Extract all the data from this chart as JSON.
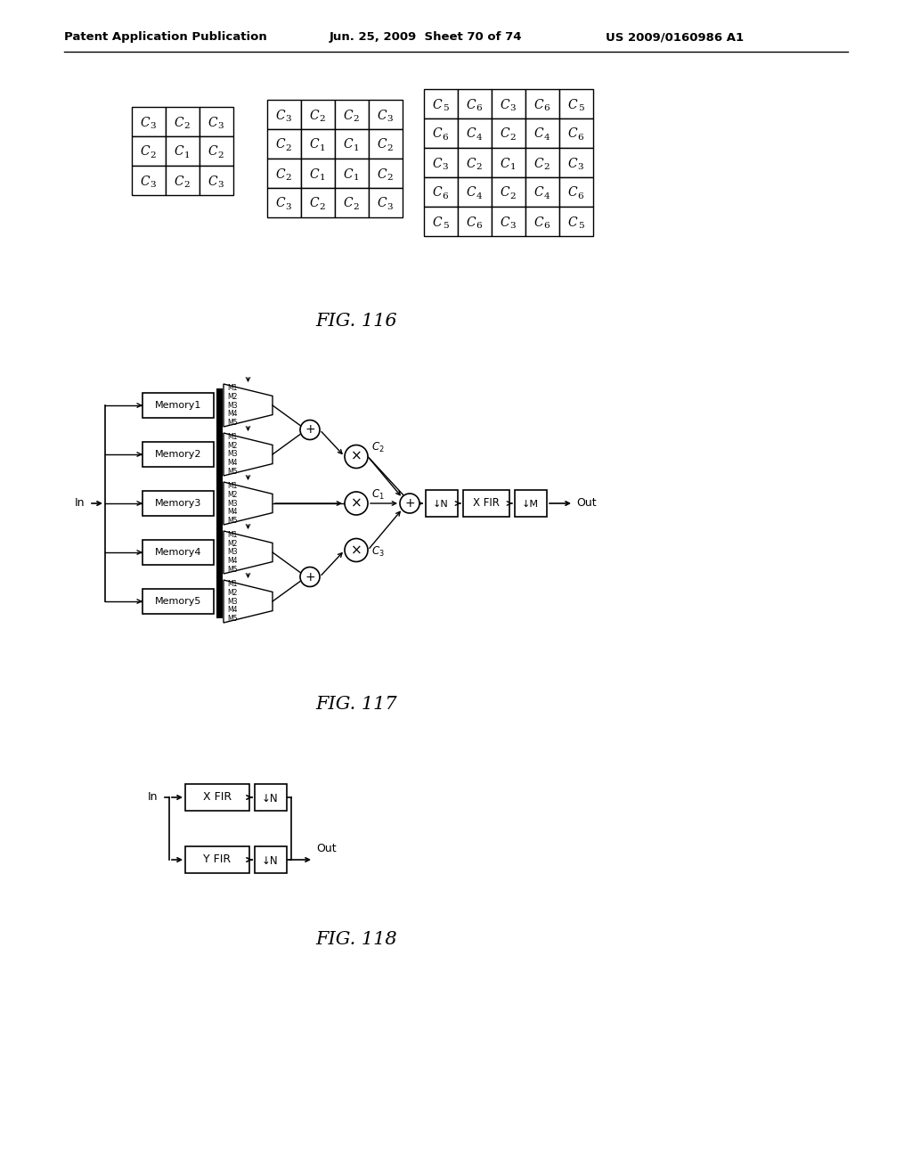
{
  "bg_color": "#ffffff",
  "header_left": "Patent Application Publication",
  "header_mid": "Jun. 25, 2009  Sheet 70 of 74",
  "header_right": "US 2009/0160986 A1",
  "fig116_label": "FIG. 116",
  "fig117_label": "FIG. 117",
  "fig118_label": "FIG. 118",
  "grid1": [
    [
      "C3",
      "C2",
      "C3"
    ],
    [
      "C2",
      "C1",
      "C2"
    ],
    [
      "C3",
      "C2",
      "C3"
    ]
  ],
  "grid2": [
    [
      "C3",
      "C2",
      "C2",
      "C3"
    ],
    [
      "C2",
      "C1",
      "C1",
      "C2"
    ],
    [
      "C2",
      "C1",
      "C1",
      "C2"
    ],
    [
      "C3",
      "C2",
      "C2",
      "C3"
    ]
  ],
  "grid3": [
    [
      "C5",
      "C6",
      "C3",
      "C6",
      "C5"
    ],
    [
      "C6",
      "C4",
      "C2",
      "C4",
      "C6"
    ],
    [
      "C3",
      "C2",
      "C1",
      "C2",
      "C3"
    ],
    [
      "C6",
      "C4",
      "C2",
      "C4",
      "C6"
    ],
    [
      "C5",
      "C6",
      "C3",
      "C6",
      "C5"
    ]
  ],
  "memory_labels": [
    "Memory1",
    "Memory2",
    "Memory3",
    "Memory4",
    "Memory5"
  ],
  "mux_labels": [
    "M1",
    "M2",
    "M3",
    "M4",
    "M5"
  ]
}
